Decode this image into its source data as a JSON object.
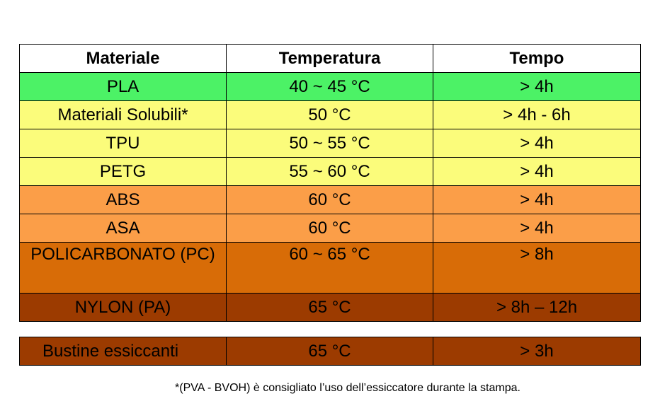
{
  "headers": [
    "Materiale",
    "Temperatura",
    "Tempo"
  ],
  "rows": [
    {
      "material": "PLA",
      "temperature": "40 ~ 45 °C",
      "time": "> 4h",
      "color": "#4cf266"
    },
    {
      "material": "Materiali Solubili*",
      "temperature": "50 °C",
      "time": "> 4h - 6h",
      "color": "#fbfc7b"
    },
    {
      "material": "TPU",
      "temperature": "50 ~ 55 °C",
      "time": "> 4h",
      "color": "#fbfc7b"
    },
    {
      "material": "PETG",
      "temperature": "55 ~ 60 °C",
      "time": "> 4h",
      "color": "#fbfc7b"
    },
    {
      "material": "ABS",
      "temperature": "60 °C",
      "time": "> 4h",
      "color": "#fb9e48"
    },
    {
      "material": "ASA",
      "temperature": "60 °C",
      "time": "> 4h",
      "color": "#fb9e48"
    },
    {
      "material": "POLICARBONATO (PC)",
      "temperature": "60 ~ 65 °C",
      "time": "> 8h",
      "color": "#d86c07"
    },
    {
      "material": "NYLON (PA)",
      "temperature": "65 °C",
      "time": "> 8h – 12h",
      "color": "#9c3b00"
    }
  ],
  "sachet": {
    "material": "Bustine essiccanti",
    "temperature": "65 °C",
    "time": "> 3h",
    "color": "#9c3b00"
  },
  "footnote": "*(PVA - BVOH) è consigliato l’uso dell’essiccatore durante la stampa."
}
